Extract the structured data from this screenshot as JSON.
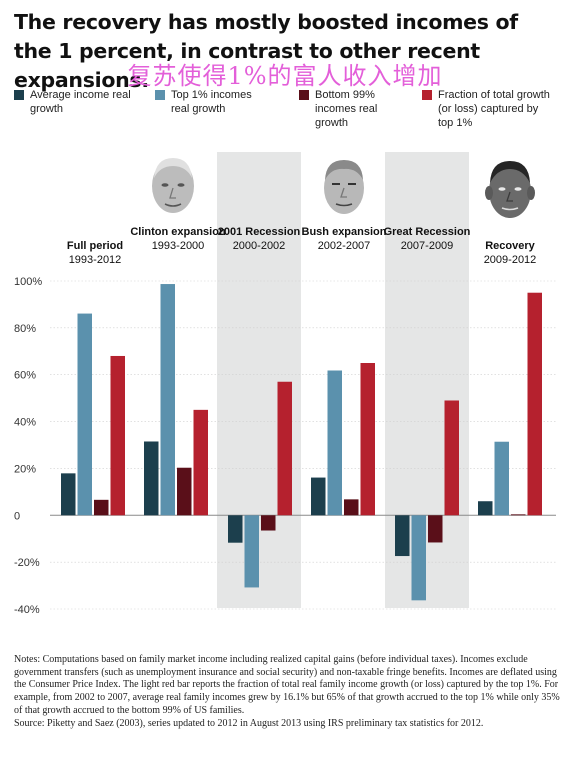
{
  "title": "The recovery has mostly boosted incomes of the 1 percent, in contrast to other recent expansions.",
  "overlay_text": "复苏使得1%的富人收入增加",
  "legend": [
    {
      "label": "Average income real growth",
      "color": "#1c3f4d"
    },
    {
      "label": "Top 1% incomes real growth",
      "color": "#5b91ad"
    },
    {
      "label": "Bottom 99% incomes real growth",
      "color": "#5a0f19"
    },
    {
      "label": "Fraction of total growth (or loss) captured by top 1%",
      "color": "#b5212e"
    }
  ],
  "groups": [
    {
      "name": "Full period",
      "years": "1993-2012",
      "shaded": false,
      "photo": null
    },
    {
      "name": "Clinton expansion",
      "years": "1993-2000",
      "shaded": false,
      "photo": "portrait-clinton"
    },
    {
      "name": "2001 Recession",
      "years": "2000-2002",
      "shaded": true,
      "photo": null
    },
    {
      "name": "Bush expansion",
      "years": "2002-2007",
      "shaded": false,
      "photo": "portrait-bush"
    },
    {
      "name": "Great Recession",
      "years": "2007-2009",
      "shaded": true,
      "photo": null
    },
    {
      "name": "Recovery",
      "years": "2009-2012",
      "shaded": false,
      "photo": "portrait-obama"
    }
  ],
  "chart_data": {
    "type": "bar",
    "categories": [
      "Full period 1993-2012",
      "Clinton expansion 1993-2000",
      "2001 Recession 2000-2002",
      "Bush expansion 2002-2007",
      "Great Recession 2007-2009",
      "Recovery 2009-2012"
    ],
    "series": [
      {
        "name": "Average income real growth",
        "color": "#1c3f4d",
        "values": [
          17.9,
          31.5,
          -11.7,
          16.1,
          -17.4,
          6.0
        ]
      },
      {
        "name": "Top 1% incomes real growth",
        "color": "#5b91ad",
        "values": [
          86.1,
          98.7,
          -30.8,
          61.8,
          -36.3,
          31.4
        ]
      },
      {
        "name": "Bottom 99% incomes real growth",
        "color": "#5a0f19",
        "values": [
          6.6,
          20.3,
          -6.5,
          6.8,
          -11.6,
          0.4
        ]
      },
      {
        "name": "Fraction of total growth (or loss) captured by top 1%",
        "color": "#b5212e",
        "values": [
          68,
          45,
          57,
          65,
          49,
          95
        ]
      }
    ],
    "ylim": [
      -40,
      100
    ],
    "yticks": [
      -40,
      -20,
      0,
      20,
      40,
      60,
      80,
      100
    ],
    "ytick_labels": [
      "-40%",
      "-20%",
      "0",
      "20%",
      "40%",
      "60%",
      "80%",
      "100%"
    ],
    "grid": true,
    "legend_position": "top"
  },
  "notes": "Notes: Computations based on family market income including realized capital gains (before individual taxes). Incomes exclude government transfers (such as unemployment insurance and social security) and non-taxable fringe benefits. Incomes are deflated using the Consumer Price Index. The light red bar reports the fraction of total real family income growth (or loss) captured by the top 1%. For example, from 2002 to 2007, average real family incomes grew by 16.1% but 65% of that growth accrued to the top 1% while only 35% of that growth accrued to the bottom 99% of US families.",
  "source": "Source: Piketty and Saez (2003), series updated to 2012 in August 2013 using IRS preliminary tax statistics for 2012."
}
